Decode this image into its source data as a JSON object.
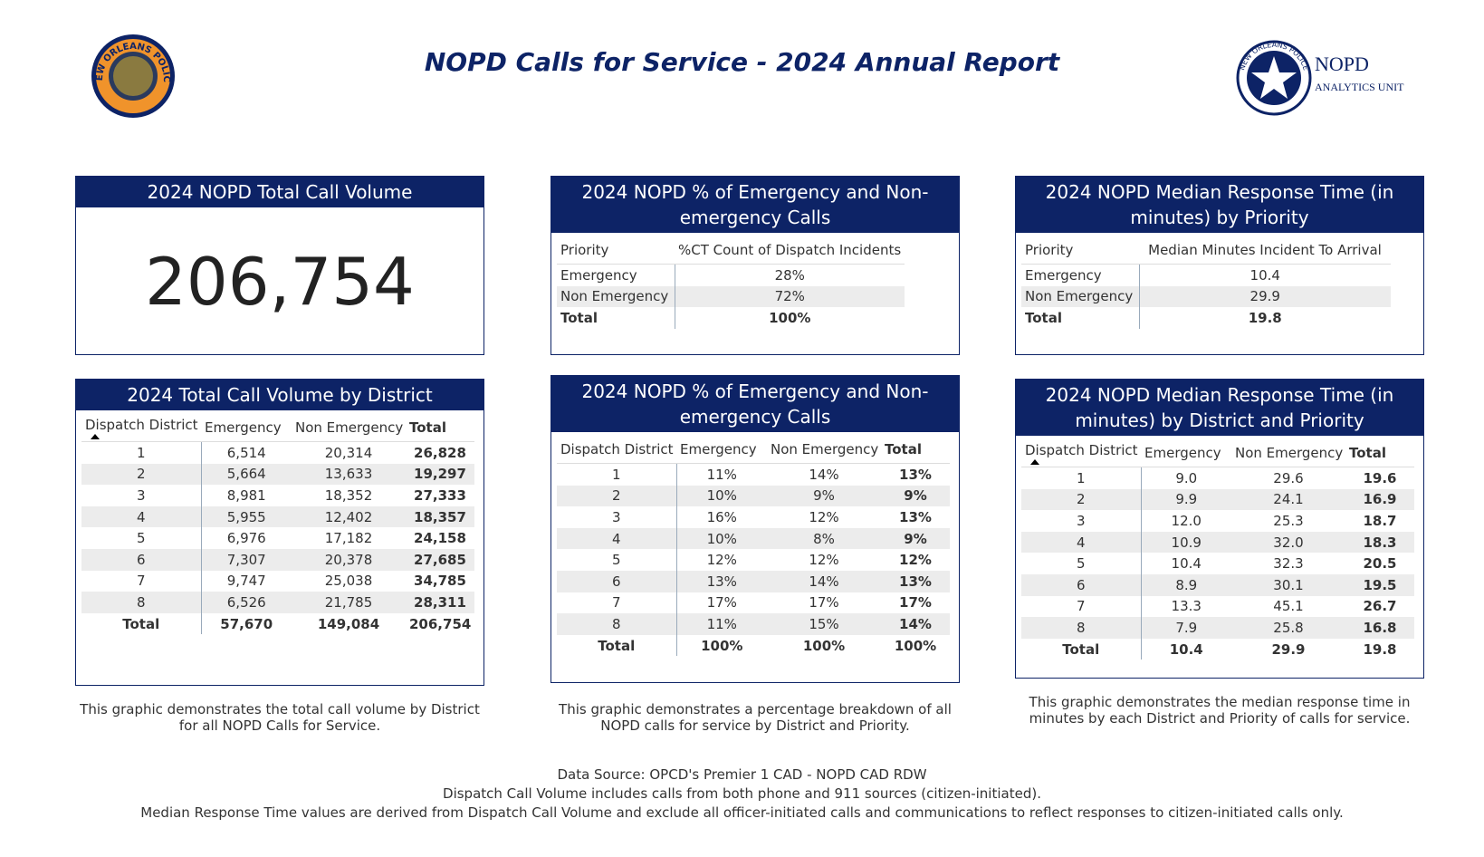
{
  "header": {
    "title": "NOPD Calls for Service - 2024 Annual Report",
    "left_logo": "NEW ORLEANS POLICE",
    "right_logo": {
      "ring": "NEW ORLEANS POLICE",
      "name": "NOPD",
      "unit": "ANALYTICS UNIT"
    }
  },
  "total_card": {
    "title": "2024 NOPD Total Call Volume",
    "value": "206,754"
  },
  "pct_priority": {
    "title": "2024 NOPD % of Emergency and Non-emergency Calls",
    "columns": [
      "Priority",
      "%CT Count of Dispatch Incidents"
    ],
    "rows": [
      [
        "Emergency",
        "28%"
      ],
      [
        "Non Emergency",
        "72%"
      ]
    ],
    "total": [
      "Total",
      "100%"
    ]
  },
  "median_priority": {
    "title": "2024 NOPD Median Response Time (in minutes) by Priority",
    "columns": [
      "Priority",
      "Median Minutes Incident To Arrival"
    ],
    "rows": [
      [
        "Emergency",
        "10.4"
      ],
      [
        "Non Emergency",
        "29.9"
      ]
    ],
    "total": [
      "Total",
      "19.8"
    ]
  },
  "volume_district": {
    "title": "2024 Total Call Volume by District",
    "columns": [
      "Dispatch District",
      "Emergency",
      "Non Emergency",
      "Total"
    ],
    "rows": [
      [
        "1",
        "6,514",
        "20,314",
        "26,828"
      ],
      [
        "2",
        "5,664",
        "13,633",
        "19,297"
      ],
      [
        "3",
        "8,981",
        "18,352",
        "27,333"
      ],
      [
        "4",
        "5,955",
        "12,402",
        "18,357"
      ],
      [
        "5",
        "6,976",
        "17,182",
        "24,158"
      ],
      [
        "6",
        "7,307",
        "20,378",
        "27,685"
      ],
      [
        "7",
        "9,747",
        "25,038",
        "34,785"
      ],
      [
        "8",
        "6,526",
        "21,785",
        "28,311"
      ]
    ],
    "total": [
      "Total",
      "57,670",
      "149,084",
      "206,754"
    ]
  },
  "pct_district": {
    "title": "2024 NOPD % of Emergency and Non-emergency Calls",
    "columns": [
      "Dispatch District",
      "Emergency",
      "Non Emergency",
      "Total"
    ],
    "rows": [
      [
        "1",
        "11%",
        "14%",
        "13%"
      ],
      [
        "2",
        "10%",
        "9%",
        "9%"
      ],
      [
        "3",
        "16%",
        "12%",
        "13%"
      ],
      [
        "4",
        "10%",
        "8%",
        "9%"
      ],
      [
        "5",
        "12%",
        "12%",
        "12%"
      ],
      [
        "6",
        "13%",
        "14%",
        "13%"
      ],
      [
        "7",
        "17%",
        "17%",
        "17%"
      ],
      [
        "8",
        "11%",
        "15%",
        "14%"
      ]
    ],
    "total": [
      "Total",
      "100%",
      "100%",
      "100%"
    ]
  },
  "median_district": {
    "title": "2024 NOPD Median Response Time (in minutes) by District and Priority",
    "columns": [
      "Dispatch District",
      "Emergency",
      "Non Emergency",
      "Total"
    ],
    "rows": [
      [
        "1",
        "9.0",
        "29.6",
        "19.6"
      ],
      [
        "2",
        "9.9",
        "24.1",
        "16.9"
      ],
      [
        "3",
        "12.0",
        "25.3",
        "18.7"
      ],
      [
        "4",
        "10.9",
        "32.0",
        "18.3"
      ],
      [
        "5",
        "10.4",
        "32.3",
        "20.5"
      ],
      [
        "6",
        "8.9",
        "30.1",
        "19.5"
      ],
      [
        "7",
        "13.3",
        "45.1",
        "26.7"
      ],
      [
        "8",
        "7.9",
        "25.8",
        "16.8"
      ]
    ],
    "total": [
      "Total",
      "10.4",
      "29.9",
      "19.8"
    ]
  },
  "notes": [
    "This graphic demonstrates the total call volume by District for all NOPD Calls for Service.",
    "This graphic demonstrates a percentage breakdown of all NOPD calls for service by  District and Priority.",
    "This graphic demonstrates the median response time in minutes by each District and Priority of calls for service."
  ],
  "footer": [
    "Data Source: OPCD's Premier 1 CAD - NOPD CAD RDW",
    "Dispatch Call Volume includes calls from both phone and 911 sources (citizen-initiated).",
    "Median Response Time values are derived from Dispatch Call Volume and exclude all officer-initiated calls and communications to reflect responses to citizen-initiated calls only."
  ]
}
